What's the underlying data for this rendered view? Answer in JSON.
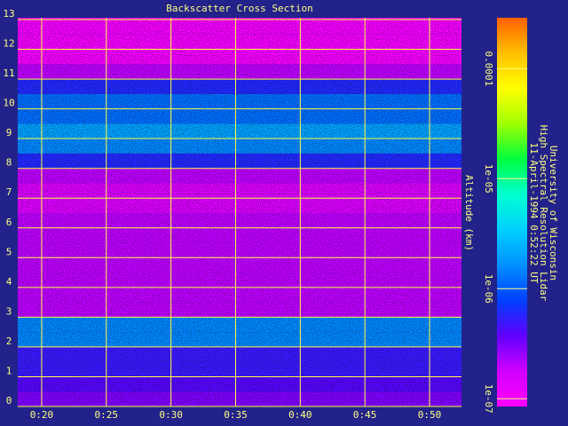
{
  "chart_data": {
    "type": "heatmap",
    "title": "Backscatter Cross Section",
    "y_label": "Altitude (km)",
    "notes": [
      "University of Wisconsin",
      "High Spectral Resolution Lidar",
      "11-April-1994  0:52:22 UT"
    ],
    "xlim": [
      18.15,
      52.47
    ],
    "xticks": [
      {
        "value": 20,
        "label": "0:20"
      },
      {
        "value": 25,
        "label": "0:25"
      },
      {
        "value": 30,
        "label": "0:30"
      },
      {
        "value": 35,
        "label": "0:35"
      },
      {
        "value": 40,
        "label": "0:40"
      },
      {
        "value": 45,
        "label": "0:45"
      },
      {
        "value": 50,
        "label": "0:50"
      }
    ],
    "ylim": [
      0,
      13.06
    ],
    "yticks": [
      0,
      1,
      2,
      3,
      4,
      5,
      6,
      7,
      8,
      9,
      10,
      11,
      12,
      13
    ],
    "grid": true,
    "y_bins": [
      0,
      0.5,
      1,
      1.5,
      2,
      2.5,
      3,
      3.5,
      4,
      4.5,
      5,
      5.5,
      6,
      6.5,
      7,
      7.5,
      8,
      8.5,
      9,
      9.5,
      10,
      10.5,
      11,
      11.5,
      12,
      12.5,
      13.06
    ],
    "values": [
      3e-07,
      4e-07,
      5e-07,
      5e-07,
      1.5e-06,
      1.5e-06,
      2e-07,
      2e-07,
      2e-07,
      2e-07,
      2e-07,
      2e-07,
      2e-07,
      1.5e-07,
      1.5e-07,
      2e-07,
      6e-07,
      1.5e-06,
      2e-06,
      1.2e-06,
      1.2e-06,
      6e-07,
      2e-07,
      1e-07,
      1e-07,
      1e-07
    ],
    "color_scale": "log",
    "clim": [
      8.5e-08,
      0.00029
    ],
    "cticks": [
      {
        "value": 1e-07,
        "label": "1e-07"
      },
      {
        "value": 1e-06,
        "label": "1e-06"
      },
      {
        "value": 1e-05,
        "label": "1e-05"
      },
      0.0001
    ],
    "colormap": [
      "#ff00ff",
      "#d000ff",
      "#6000ff",
      "#0040ff",
      "#0090ff",
      "#00d0ff",
      "#00ffd0",
      "#00ff40",
      "#a0ff00",
      "#ffff00",
      "#ffc000",
      "#ff6000"
    ]
  }
}
